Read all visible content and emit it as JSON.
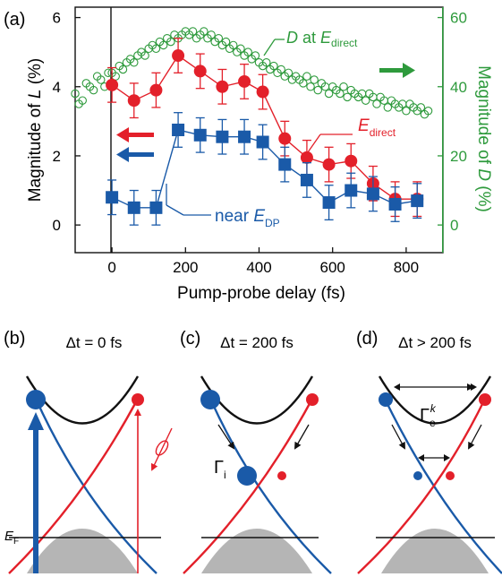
{
  "panels": {
    "a": "(a)",
    "b": "(b)",
    "c": "(c)",
    "d": "(d)"
  },
  "colors": {
    "red": "#e3202a",
    "blue": "#1a5aa8",
    "green": "#2e9a3c",
    "black": "#111111",
    "gray": "#b5b5b5"
  },
  "chart_data": {
    "type": "scatter",
    "xlabel": "Pump-probe delay (fs)",
    "ylabel_left": "Magnitude of L (%)",
    "ylabel_right": "Magnitude of D (%)",
    "xlim": [
      -100,
      900
    ],
    "ylim_left": [
      -0.8,
      6.3
    ],
    "ylim_right": [
      -8,
      63
    ],
    "x_ticks": [
      0,
      200,
      400,
      600,
      800
    ],
    "y_ticks_left": [
      0,
      2,
      4,
      6
    ],
    "y_ticks_right": [
      0,
      20,
      40,
      60
    ],
    "series": [
      {
        "name": "E_direct",
        "axis": "left",
        "marker": "circle",
        "color": "#e3202a",
        "x": [
          0,
          60,
          120,
          180,
          240,
          300,
          360,
          410,
          470,
          530,
          590,
          650,
          710,
          770,
          830
        ],
        "y": [
          4.05,
          3.6,
          3.9,
          4.9,
          4.45,
          4.0,
          4.15,
          3.85,
          2.5,
          1.95,
          1.75,
          1.85,
          1.2,
          0.75,
          0.75
        ],
        "err": [
          0.5,
          0.5,
          0.5,
          0.5,
          0.5,
          0.5,
          0.5,
          0.5,
          0.5,
          0.5,
          0.5,
          0.5,
          0.5,
          0.5,
          0.5
        ]
      },
      {
        "name": "near E_DP",
        "axis": "left",
        "marker": "square",
        "color": "#1a5aa8",
        "x": [
          0,
          60,
          120,
          180,
          240,
          300,
          360,
          410,
          470,
          530,
          590,
          650,
          710,
          770,
          830
        ],
        "y": [
          0.8,
          0.5,
          0.5,
          2.75,
          2.6,
          2.55,
          2.55,
          2.4,
          1.75,
          1.3,
          0.65,
          1.0,
          0.9,
          0.6,
          0.7
        ],
        "err": [
          0.5,
          0.5,
          0.5,
          0.5,
          0.5,
          0.5,
          0.5,
          0.5,
          0.5,
          0.5,
          0.5,
          0.5,
          0.5,
          0.5,
          0.5
        ]
      },
      {
        "name": "D at E_direct",
        "axis": "right",
        "marker": "open-circle",
        "color": "#2e9a3c",
        "x": [
          -100,
          -90,
          -80,
          -70,
          -60,
          -50,
          -40,
          -30,
          -20,
          -10,
          0,
          10,
          20,
          30,
          40,
          50,
          60,
          70,
          80,
          90,
          100,
          110,
          120,
          130,
          140,
          150,
          160,
          170,
          180,
          190,
          200,
          210,
          220,
          230,
          240,
          250,
          260,
          270,
          280,
          290,
          300,
          310,
          320,
          330,
          340,
          350,
          360,
          370,
          380,
          390,
          400,
          410,
          420,
          430,
          440,
          450,
          460,
          470,
          480,
          490,
          500,
          510,
          520,
          530,
          540,
          550,
          560,
          570,
          580,
          590,
          600,
          610,
          620,
          630,
          640,
          650,
          660,
          670,
          680,
          690,
          700,
          710,
          720,
          730,
          740,
          750,
          760,
          770,
          780,
          790,
          800,
          810,
          820,
          830,
          840,
          850,
          860
        ],
        "y": [
          38,
          35,
          36,
          41,
          40,
          39,
          43,
          42,
          40,
          44,
          44,
          43,
          46,
          45,
          47,
          48,
          47,
          49,
          50,
          49,
          51,
          52,
          51,
          53,
          52,
          54,
          53,
          55,
          54,
          55,
          56,
          55,
          56,
          54,
          55,
          56,
          54,
          55,
          53,
          54,
          52,
          53,
          51,
          52,
          50,
          51,
          49,
          50,
          48,
          49,
          47,
          46,
          47,
          45,
          46,
          44,
          45,
          43,
          44,
          42,
          43,
          42,
          41,
          43,
          40,
          42,
          39,
          41,
          40,
          38,
          40,
          39,
          38,
          40,
          37,
          39,
          38,
          37,
          38,
          36,
          38,
          37,
          35,
          37,
          36,
          34,
          36,
          35,
          34,
          35,
          33,
          35,
          34,
          33,
          34,
          32,
          33
        ]
      }
    ],
    "annotations": {
      "d_label": "D at E",
      "d_sub": "direct",
      "e_label": "E",
      "e_sub": "direct",
      "near_label": "near E",
      "near_sub": "DP"
    }
  },
  "schematics": {
    "b": {
      "title": "Δt = 0 fs",
      "ef_label": "E",
      "ef_sub": "F"
    },
    "c": {
      "title": "Δt = 200 fs",
      "gamma": "Γ",
      "gamma_sub": "i"
    },
    "d": {
      "title": "Δt > 200 fs",
      "gamma": "Γ",
      "gamma_sub": "e",
      "gamma_sup": "k"
    }
  }
}
